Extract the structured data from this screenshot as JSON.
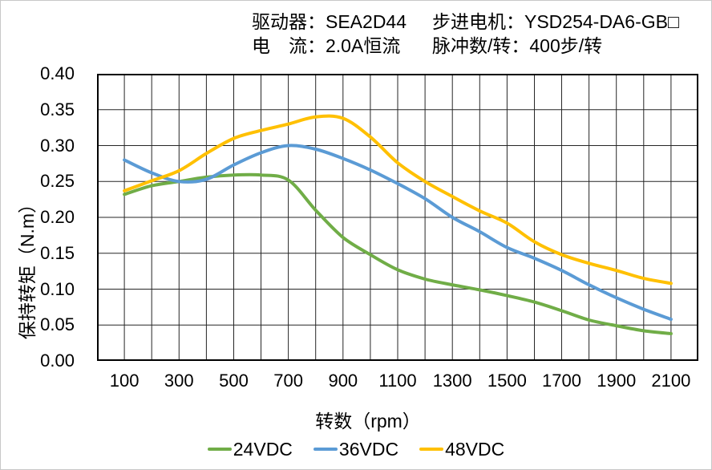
{
  "header": {
    "driver": "驱动器：SEA2D44",
    "current": "电　流：2.0A恒流",
    "motor": "步进电机：YSD254-DA6-GB□",
    "pulses": "脉冲数/转：400步/转"
  },
  "chart_data": {
    "type": "line",
    "title": "",
    "xlabel": "转数（rpm）",
    "ylabel": "保持转矩（N.m）",
    "xlim": [
      0,
      2200
    ],
    "ylim": [
      0.0,
      0.4
    ],
    "grid": "on",
    "grid_x_step_rpm": 100,
    "grid_y_step_nm": 0.05,
    "legend_position": "bottom",
    "x_tick_labels": [
      100,
      300,
      500,
      700,
      900,
      1100,
      1300,
      1500,
      1700,
      1900,
      2100
    ],
    "y_tick_labels": [
      "0.00",
      "0.05",
      "0.10",
      "0.15",
      "0.20",
      "0.25",
      "0.30",
      "0.35",
      "0.40"
    ],
    "x": [
      100,
      200,
      300,
      400,
      500,
      600,
      700,
      800,
      900,
      1000,
      1100,
      1200,
      1300,
      1400,
      1500,
      1600,
      1700,
      1800,
      1900,
      2000,
      2100
    ],
    "series": [
      {
        "name": "24VDC",
        "color": "#70AD47",
        "values": [
          0.232,
          0.244,
          0.25,
          0.256,
          0.259,
          0.259,
          0.252,
          0.21,
          0.172,
          0.148,
          0.127,
          0.114,
          0.106,
          0.099,
          0.091,
          0.082,
          0.07,
          0.057,
          0.049,
          0.042,
          0.038
        ]
      },
      {
        "name": "36VDC",
        "color": "#5B9BD5",
        "values": [
          0.28,
          0.262,
          0.25,
          0.253,
          0.273,
          0.29,
          0.3,
          0.295,
          0.282,
          0.266,
          0.247,
          0.226,
          0.2,
          0.18,
          0.158,
          0.143,
          0.126,
          0.106,
          0.088,
          0.072,
          0.058
        ]
      },
      {
        "name": "48VDC",
        "color": "#FFC000",
        "values": [
          0.237,
          0.251,
          0.265,
          0.289,
          0.31,
          0.321,
          0.33,
          0.34,
          0.338,
          0.312,
          0.276,
          0.25,
          0.229,
          0.209,
          0.192,
          0.166,
          0.148,
          0.136,
          0.126,
          0.115,
          0.108
        ]
      }
    ]
  }
}
